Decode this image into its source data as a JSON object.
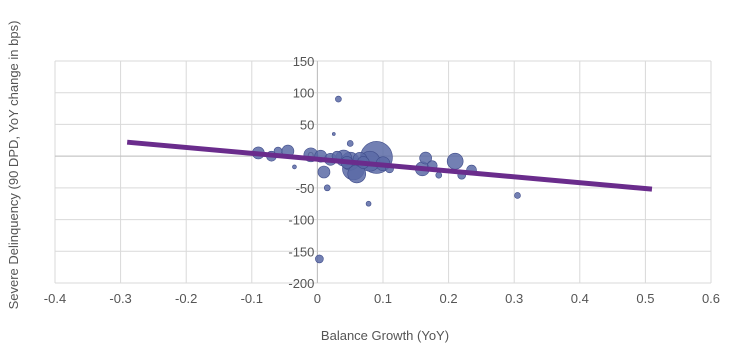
{
  "chart_data": {
    "type": "scatter",
    "title": "",
    "xlabel": "Balance Growth (YoY)",
    "ylabel": "Severe Delinquency (90 DPD, YoY change in bps)",
    "xlim": [
      -0.4,
      0.6
    ],
    "ylim": [
      -200,
      150
    ],
    "xticks": [
      -0.4,
      -0.3,
      -0.2,
      -0.1,
      0,
      0.1,
      0.2,
      0.3,
      0.4,
      0.5,
      0.6
    ],
    "yticks": [
      -200,
      -150,
      -100,
      -50,
      0,
      50,
      100,
      150
    ],
    "xtick_labels": [
      "-0.4",
      "-0.3",
      "-0.2",
      "-0.1",
      "0",
      "0.1",
      "0.2",
      "0.3",
      "0.4",
      "0.5",
      "0.6"
    ],
    "ytick_labels": [
      "-200",
      "-150",
      "-100",
      "-50",
      "0",
      "50",
      "100",
      "150"
    ],
    "grid": true,
    "legend": "none",
    "bubble_color": "#5b6aa6",
    "trend_color": "#6a2c8c",
    "points": [
      {
        "x": -0.09,
        "y": 5,
        "size": 6
      },
      {
        "x": -0.07,
        "y": 0,
        "size": 5
      },
      {
        "x": -0.06,
        "y": 8,
        "size": 4
      },
      {
        "x": -0.045,
        "y": 8,
        "size": 6
      },
      {
        "x": -0.035,
        "y": -17,
        "size": 2
      },
      {
        "x": -0.01,
        "y": 2,
        "size": 7
      },
      {
        "x": 0.003,
        "y": -162,
        "size": 4
      },
      {
        "x": 0.005,
        "y": 0,
        "size": 6
      },
      {
        "x": 0.01,
        "y": -25,
        "size": 6
      },
      {
        "x": 0.015,
        "y": -50,
        "size": 3
      },
      {
        "x": 0.02,
        "y": -5,
        "size": 6
      },
      {
        "x": 0.025,
        "y": 35,
        "size": 1.5
      },
      {
        "x": 0.03,
        "y": 0,
        "size": 5
      },
      {
        "x": 0.032,
        "y": 90,
        "size": 3
      },
      {
        "x": 0.04,
        "y": -3,
        "size": 8
      },
      {
        "x": 0.045,
        "y": -10,
        "size": 6
      },
      {
        "x": 0.05,
        "y": 20,
        "size": 3
      },
      {
        "x": 0.05,
        "y": -8,
        "size": 9
      },
      {
        "x": 0.055,
        "y": -20,
        "size": 11
      },
      {
        "x": 0.06,
        "y": -28,
        "size": 9
      },
      {
        "x": 0.065,
        "y": -5,
        "size": 7
      },
      {
        "x": 0.07,
        "y": -10,
        "size": 6
      },
      {
        "x": 0.078,
        "y": -75,
        "size": 2.5
      },
      {
        "x": 0.08,
        "y": -8,
        "size": 10
      },
      {
        "x": 0.09,
        "y": -2,
        "size": 16
      },
      {
        "x": 0.1,
        "y": -12,
        "size": 7
      },
      {
        "x": 0.11,
        "y": -20,
        "size": 4
      },
      {
        "x": 0.16,
        "y": -20,
        "size": 7
      },
      {
        "x": 0.165,
        "y": -3,
        "size": 6
      },
      {
        "x": 0.175,
        "y": -15,
        "size": 5
      },
      {
        "x": 0.185,
        "y": -30,
        "size": 3
      },
      {
        "x": 0.21,
        "y": -8,
        "size": 8
      },
      {
        "x": 0.22,
        "y": -30,
        "size": 4
      },
      {
        "x": 0.235,
        "y": -22,
        "size": 5
      },
      {
        "x": 0.305,
        "y": -62,
        "size": 3
      }
    ],
    "trendline": {
      "x": [
        -0.29,
        0.51
      ],
      "y": [
        22,
        -52
      ]
    }
  }
}
